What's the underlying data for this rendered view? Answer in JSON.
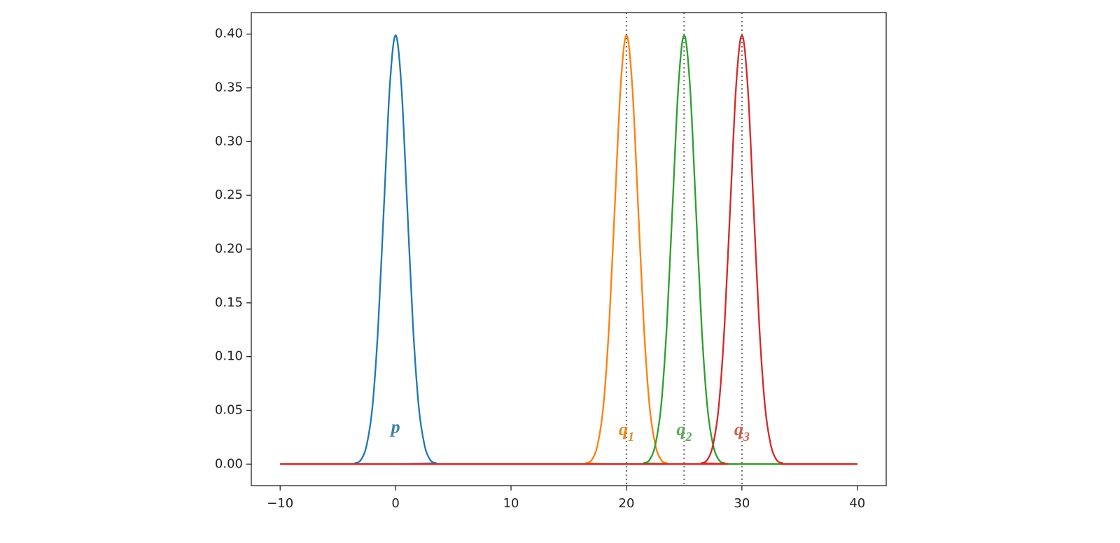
{
  "chart_data": {
    "type": "line",
    "xlim": [
      -12.5,
      42.5
    ],
    "ylim": [
      -0.02,
      0.42
    ],
    "xticks": [
      {
        "value": -10,
        "label": "−10"
      },
      0,
      10,
      20,
      30,
      40
    ],
    "yticks": [
      {
        "value": 0,
        "label": "0.00"
      },
      {
        "value": 0.05,
        "label": "0.05"
      },
      {
        "value": 0.1,
        "label": "0.10"
      },
      {
        "value": 0.15,
        "label": "0.15"
      },
      {
        "value": 0.2,
        "label": "0.20"
      },
      {
        "value": 0.25,
        "label": "0.25"
      },
      {
        "value": 0.3,
        "label": "0.30"
      },
      {
        "value": 0.35,
        "label": "0.35"
      },
      {
        "value": 0.4,
        "label": "0.40"
      }
    ],
    "series": [
      {
        "color": "#1f77b4",
        "x": [
          -10,
          -4,
          -3.5,
          -3,
          -2.5,
          -2,
          -1.5,
          -1,
          -0.5,
          0,
          0.5,
          1,
          1.5,
          2,
          2.5,
          3,
          3.5,
          4,
          40
        ],
        "values": [
          0,
          0,
          0.001,
          0.004,
          0.018,
          0.054,
          0.13,
          0.242,
          0.352,
          0.399,
          0.352,
          0.242,
          0.13,
          0.054,
          0.018,
          0.004,
          0.001,
          0,
          0
        ]
      },
      {
        "color": "#ff7f0e",
        "x": [
          -10,
          16,
          16.5,
          17,
          17.5,
          18,
          18.5,
          19,
          19.5,
          20,
          20.5,
          21,
          21.5,
          22,
          22.5,
          23,
          23.5,
          24,
          40
        ],
        "values": [
          0,
          0,
          0.001,
          0.004,
          0.018,
          0.054,
          0.13,
          0.242,
          0.352,
          0.399,
          0.352,
          0.242,
          0.13,
          0.054,
          0.018,
          0.004,
          0.001,
          0,
          0
        ]
      },
      {
        "color": "#2ca02c",
        "x": [
          -10,
          21,
          21.5,
          22,
          22.5,
          23,
          23.5,
          24,
          24.5,
          25,
          25.5,
          26,
          26.5,
          27,
          27.5,
          28,
          28.5,
          29,
          40
        ],
        "values": [
          0,
          0,
          0.001,
          0.004,
          0.018,
          0.054,
          0.13,
          0.242,
          0.352,
          0.399,
          0.352,
          0.242,
          0.13,
          0.054,
          0.018,
          0.004,
          0.001,
          0,
          0
        ]
      },
      {
        "color": "#d62728",
        "x": [
          -10,
          26,
          26.5,
          27,
          27.5,
          28,
          28.5,
          29,
          29.5,
          30,
          30.5,
          31,
          31.5,
          32,
          32.5,
          33,
          33.5,
          34,
          40
        ],
        "values": [
          0,
          0,
          0.001,
          0.004,
          0.018,
          0.054,
          0.13,
          0.242,
          0.352,
          0.399,
          0.352,
          0.242,
          0.13,
          0.054,
          0.018,
          0.004,
          0.001,
          0,
          0
        ]
      }
    ],
    "vlines": [
      20,
      25,
      30
    ],
    "vline_color": "#777777",
    "annotations": [
      {
        "text": "p",
        "x": 0,
        "y": 0.029,
        "color": "#3a7fa8"
      },
      {
        "text": "q",
        "sub": "1",
        "x": 20,
        "y": 0.027,
        "color": "#e8861a"
      },
      {
        "text": "q",
        "sub": "2",
        "x": 25,
        "y": 0.027,
        "color": "#5aaa5a"
      },
      {
        "text": "q",
        "sub": "3",
        "x": 30,
        "y": 0.027,
        "color": "#d0604a"
      }
    ]
  }
}
